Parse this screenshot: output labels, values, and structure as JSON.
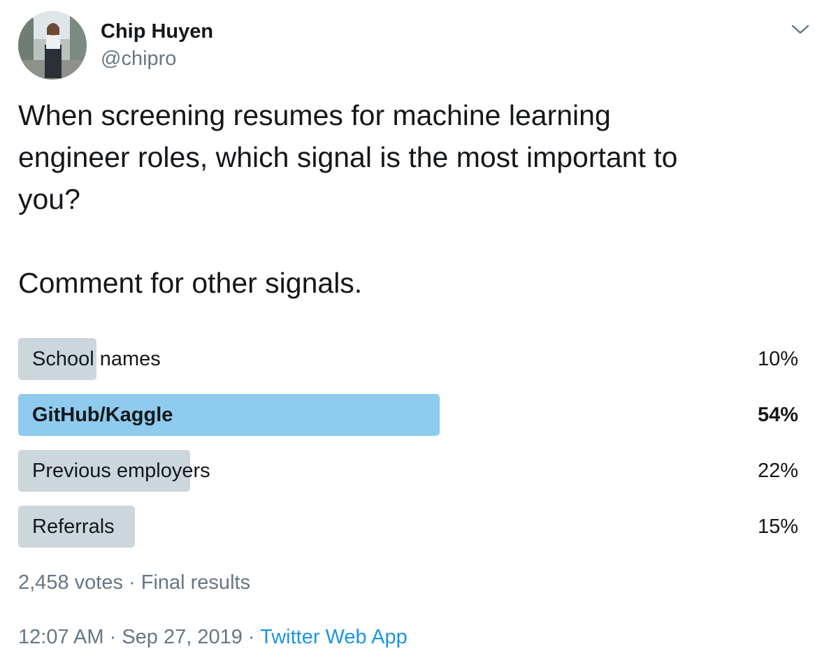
{
  "author": {
    "name": "Chip Huyen",
    "handle": "@chipro"
  },
  "icons": {
    "menu": "chevron-down-icon",
    "avatar": "profile-photo"
  },
  "tweet": {
    "lines": [
      "When screening resumes for machine learning",
      "engineer roles, which signal is the most important to",
      "you?"
    ],
    "comment": "Comment for other signals."
  },
  "poll": {
    "options": [
      {
        "label": "School names",
        "percent": "10%",
        "fraction": 0.1,
        "winner": false
      },
      {
        "label": "GitHub/Kaggle",
        "percent": "54%",
        "fraction": 0.54,
        "winner": true
      },
      {
        "label": "Previous employers",
        "percent": "22%",
        "fraction": 0.22,
        "winner": false
      },
      {
        "label": "Referrals",
        "percent": "15%",
        "fraction": 0.15,
        "winner": false
      }
    ],
    "votes": "2,458 votes",
    "separator": " · ",
    "status": "Final results"
  },
  "meta": {
    "time": "12:07 AM",
    "date": "Sep 27, 2019",
    "separator": " · ",
    "source": "Twitter Web App"
  },
  "colors": {
    "bar": "#ccd6dd",
    "bar_winner": "#8ecbee",
    "text": "#14171a",
    "secondary": "#657786",
    "link": "#1b95e0"
  }
}
